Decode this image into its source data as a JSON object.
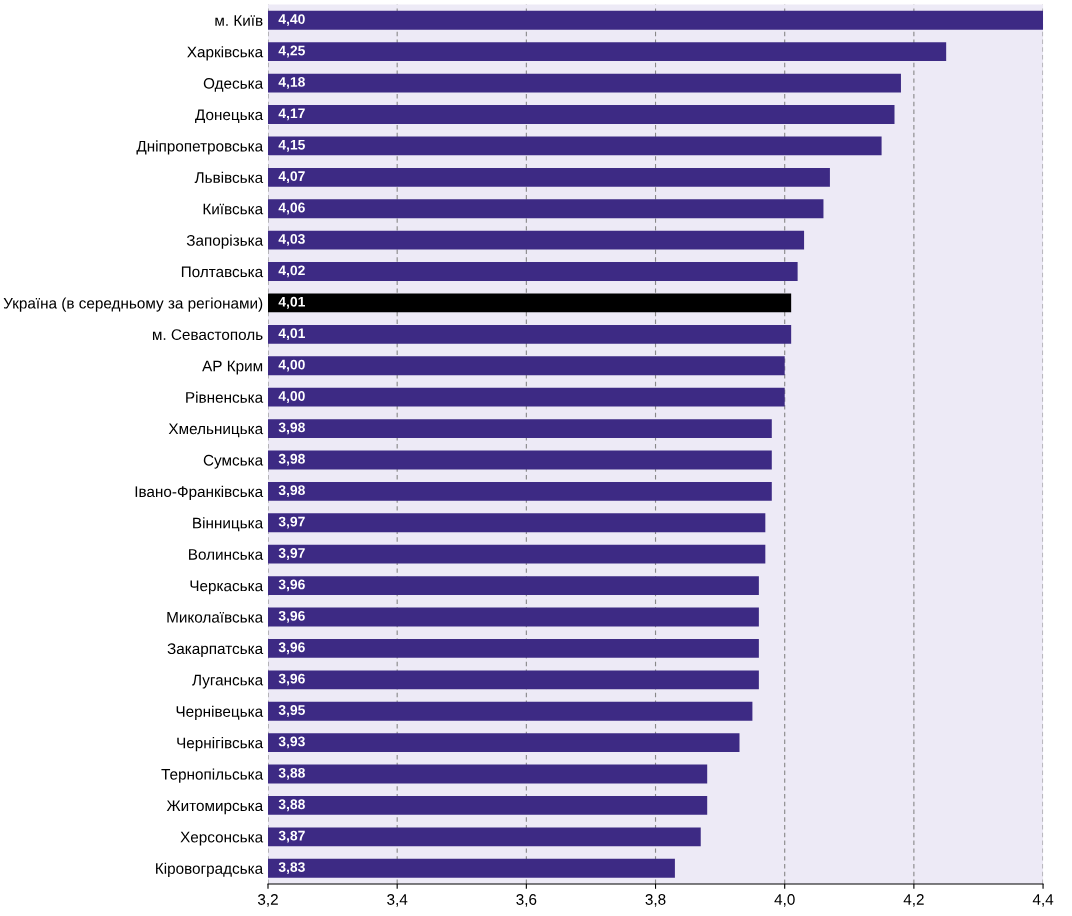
{
  "chart_data": {
    "type": "bar",
    "orientation": "horizontal",
    "categories": [
      "м. Київ",
      "Харківська",
      "Одеська",
      "Донецька",
      "Дніпропетровська",
      "Львівська",
      "Київська",
      "Запорізька",
      "Полтавська",
      "Україна (в середньому за регіонами)",
      "м. Севастополь",
      "АР Крим",
      "Рівненська",
      "Хмельницька",
      "Сумська",
      "Івано-Франківська",
      "Вінницька",
      "Волинська",
      "Черкаська",
      "Миколаївська",
      "Закарпатська",
      "Луганська",
      "Чернівецька",
      "Чернігівська",
      "Тернопільська",
      "Житомирська",
      "Херсонська",
      "Кіровоградська"
    ],
    "values": [
      4.4,
      4.25,
      4.18,
      4.17,
      4.15,
      4.07,
      4.06,
      4.03,
      4.02,
      4.01,
      4.01,
      4.0,
      4.0,
      3.98,
      3.98,
      3.98,
      3.97,
      3.97,
      3.96,
      3.96,
      3.96,
      3.96,
      3.95,
      3.93,
      3.88,
      3.88,
      3.87,
      3.83
    ],
    "value_labels": [
      "4,40",
      "4,25",
      "4,18",
      "4,17",
      "4,15",
      "4,07",
      "4,06",
      "4,03",
      "4,02",
      "4,01",
      "4,01",
      "4,00",
      "4,00",
      "3,98",
      "3,98",
      "3,98",
      "3,97",
      "3,97",
      "3,96",
      "3,96",
      "3,96",
      "3,96",
      "3,95",
      "3,93",
      "3,88",
      "3,88",
      "3,87",
      "3,83"
    ],
    "colors": [
      "#3d2a84",
      "#3d2a84",
      "#3d2a84",
      "#3d2a84",
      "#3d2a84",
      "#3d2a84",
      "#3d2a84",
      "#3d2a84",
      "#3d2a84",
      "#000000",
      "#3d2a84",
      "#3d2a84",
      "#3d2a84",
      "#3d2a84",
      "#3d2a84",
      "#3d2a84",
      "#3d2a84",
      "#3d2a84",
      "#3d2a84",
      "#3d2a84",
      "#3d2a84",
      "#3d2a84",
      "#3d2a84",
      "#3d2a84",
      "#3d2a84",
      "#3d2a84",
      "#3d2a84",
      "#3d2a84"
    ],
    "xlim": [
      3.2,
      4.4
    ],
    "xticks": [
      {
        "value": 3.2,
        "label": "3,2"
      },
      {
        "value": 3.4,
        "label": "3,4"
      },
      {
        "value": 3.6,
        "label": "3,6"
      },
      {
        "value": 3.8,
        "label": "3,8"
      },
      {
        "value": 4.0,
        "label": "4,0"
      },
      {
        "value": 4.2,
        "label": "4,2"
      },
      {
        "value": 4.4,
        "label": "4,4"
      }
    ],
    "grid": "x"
  }
}
